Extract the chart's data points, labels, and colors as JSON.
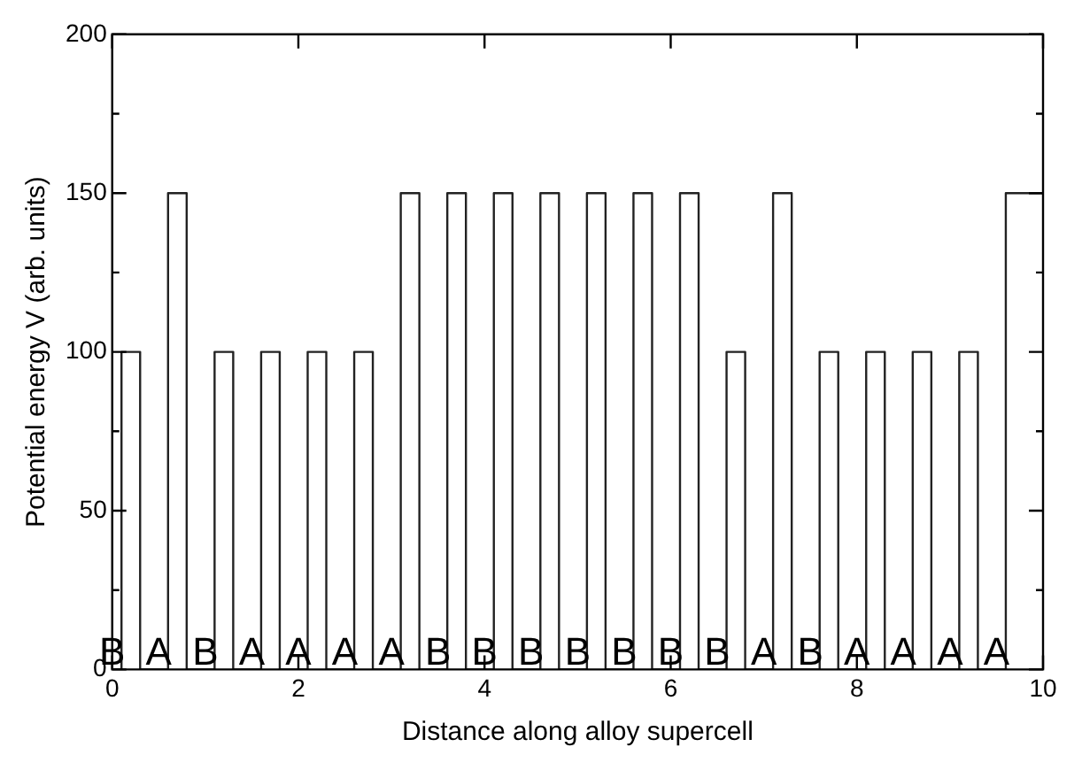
{
  "chart_data": {
    "type": "step",
    "xlabel": "Distance along alloy supercell",
    "ylabel": "Potential energy V (arb. units)",
    "xlim": [
      0,
      10
    ],
    "xticks": [
      0,
      2,
      4,
      6,
      8,
      10
    ],
    "ylim": [
      0,
      200
    ],
    "yticks": [
      0,
      50,
      100,
      150,
      200
    ],
    "grid": false,
    "legend": false,
    "marker": "none",
    "line_style": "solid",
    "series": [
      {
        "color": "#222222",
        "x": [
          0,
          0.1,
          0.3,
          0.6,
          0.8,
          1.1,
          1.3,
          1.6,
          1.8,
          2.1,
          2.3,
          2.6,
          2.8,
          3.1,
          3.3,
          3.6,
          3.8,
          4.1,
          4.3,
          4.6,
          4.8,
          5.1,
          5.3,
          5.6,
          5.8,
          6.1,
          6.3,
          6.6,
          6.8,
          7.1,
          7.3,
          7.6,
          7.8,
          8.1,
          8.3,
          8.6,
          8.8,
          9.1,
          9.3,
          9.6,
          9.8,
          10
        ],
        "values": [
          150,
          0,
          100,
          0,
          150,
          0,
          100,
          0,
          100,
          0,
          100,
          0,
          100,
          0,
          150,
          0,
          150,
          0,
          150,
          0,
          150,
          0,
          150,
          0,
          150,
          0,
          150,
          0,
          100,
          0,
          150,
          0,
          100,
          0,
          100,
          0,
          100,
          0,
          100,
          0,
          150,
          150
        ]
      }
    ],
    "annotations": [
      {
        "text": "B",
        "x": 0,
        "y": 0
      },
      {
        "text": "A",
        "x": 0.5,
        "y": 0
      },
      {
        "text": "B",
        "x": 1,
        "y": 0
      },
      {
        "text": "A",
        "x": 1.5,
        "y": 0
      },
      {
        "text": "A",
        "x": 2,
        "y": 0
      },
      {
        "text": "A",
        "x": 2.5,
        "y": 0
      },
      {
        "text": "A",
        "x": 3,
        "y": 0
      },
      {
        "text": "B",
        "x": 3.5,
        "y": 0
      },
      {
        "text": "B",
        "x": 4,
        "y": 0
      },
      {
        "text": "B",
        "x": 4.5,
        "y": 0
      },
      {
        "text": "B",
        "x": 5,
        "y": 0
      },
      {
        "text": "B",
        "x": 5.5,
        "y": 0
      },
      {
        "text": "B",
        "x": 6,
        "y": 0
      },
      {
        "text": "B",
        "x": 6.5,
        "y": 0
      },
      {
        "text": "A",
        "x": 7,
        "y": 0
      },
      {
        "text": "B",
        "x": 7.5,
        "y": 0
      },
      {
        "text": "A",
        "x": 8,
        "y": 0
      },
      {
        "text": "A",
        "x": 8.5,
        "y": 0
      },
      {
        "text": "A",
        "x": 9,
        "y": 0
      },
      {
        "text": "A",
        "x": 9.5,
        "y": 0
      }
    ]
  }
}
